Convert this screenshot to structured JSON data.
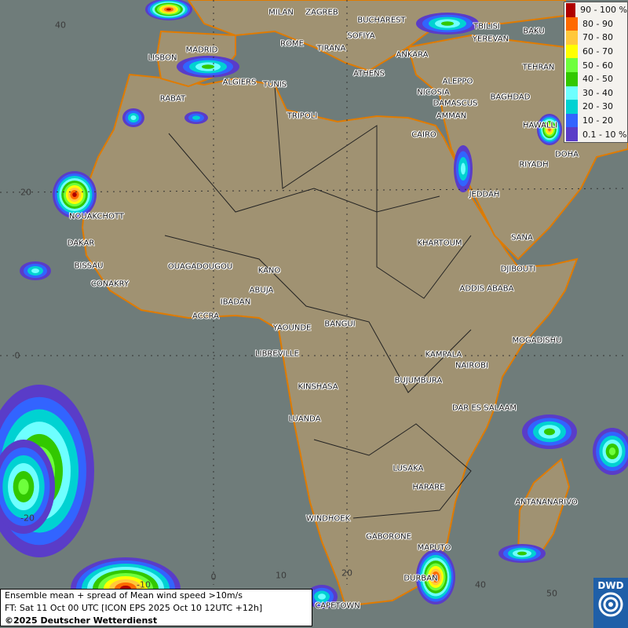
{
  "legend": {
    "items": [
      {
        "label": "90 - 100 %",
        "color": "#b00000"
      },
      {
        "label": "80 - 90",
        "color": "#ff6a00"
      },
      {
        "label": "70 - 80",
        "color": "#ffc83c"
      },
      {
        "label": "60 - 70",
        "color": "#ffff00"
      },
      {
        "label": "50 - 60",
        "color": "#6eff3c"
      },
      {
        "label": "40 - 50",
        "color": "#32c800"
      },
      {
        "label": "30 - 40",
        "color": "#6effff"
      },
      {
        "label": "20 - 30",
        "color": "#00d2d2"
      },
      {
        "label": "10 - 20",
        "color": "#3264ff"
      },
      {
        "label": "0.1 - 10 %",
        "color": "#5a3cc8"
      }
    ]
  },
  "caption": {
    "line1": "Ensemble mean + spread of Mean wind speed >10m/s",
    "line2": "FT: Sat 11 Oct 00 UTC [ICON EPS 2025 Oct 10 12UTC +12h]",
    "line3": "©2025 Deutscher Wetterdienst"
  },
  "logo": {
    "text": "DWD"
  },
  "lat_ticks": [
    "40",
    "20",
    "0",
    "-20"
  ],
  "lon_ticks": [
    "-10",
    "0",
    "10",
    "20",
    "40",
    "50"
  ],
  "cities": [
    "MILAN",
    "ZAGREB",
    "BUCHAREST",
    "TBILISI",
    "BAKU",
    "YEREVAN",
    "TEHRAN",
    "ROME",
    "SOFIYA",
    "TIRANA",
    "ANKARA",
    "MADRID",
    "LISBON",
    "ATHENS",
    "ALGIERS",
    "TUNIS",
    "ALEPPO",
    "BAGHDAD",
    "RABAT",
    "NICOSIA",
    "DAMASCUS",
    "TRIPOLI",
    "AMMAN",
    "CAIRO",
    "HAWALLI",
    "DOHA",
    "RIYADH",
    "JEDDAH",
    "NOUAKCHOTT",
    "DAKAR",
    "SANA",
    "KHARTOUM",
    "BISSAU",
    "OUAGADOUGOU",
    "KANO",
    "DJIBOUTI",
    "CONAKRY",
    "ABUJA",
    "ADDIS ABABA",
    "IBADAN",
    "ACCRA",
    "YAOUNDE",
    "BANGUI",
    "MOGADISHU",
    "LIBREVILLE",
    "KAMPALA",
    "NAIROBI",
    "KINSHASA",
    "BUJUMBURA",
    "DAR ES SALAAM",
    "LUANDA",
    "LUSAKA",
    "HARARE",
    "ANTANANARIVO",
    "WINDHOEK",
    "GABORONE",
    "MAPUTO",
    "DURBAN",
    "CAPETOWN"
  ]
}
